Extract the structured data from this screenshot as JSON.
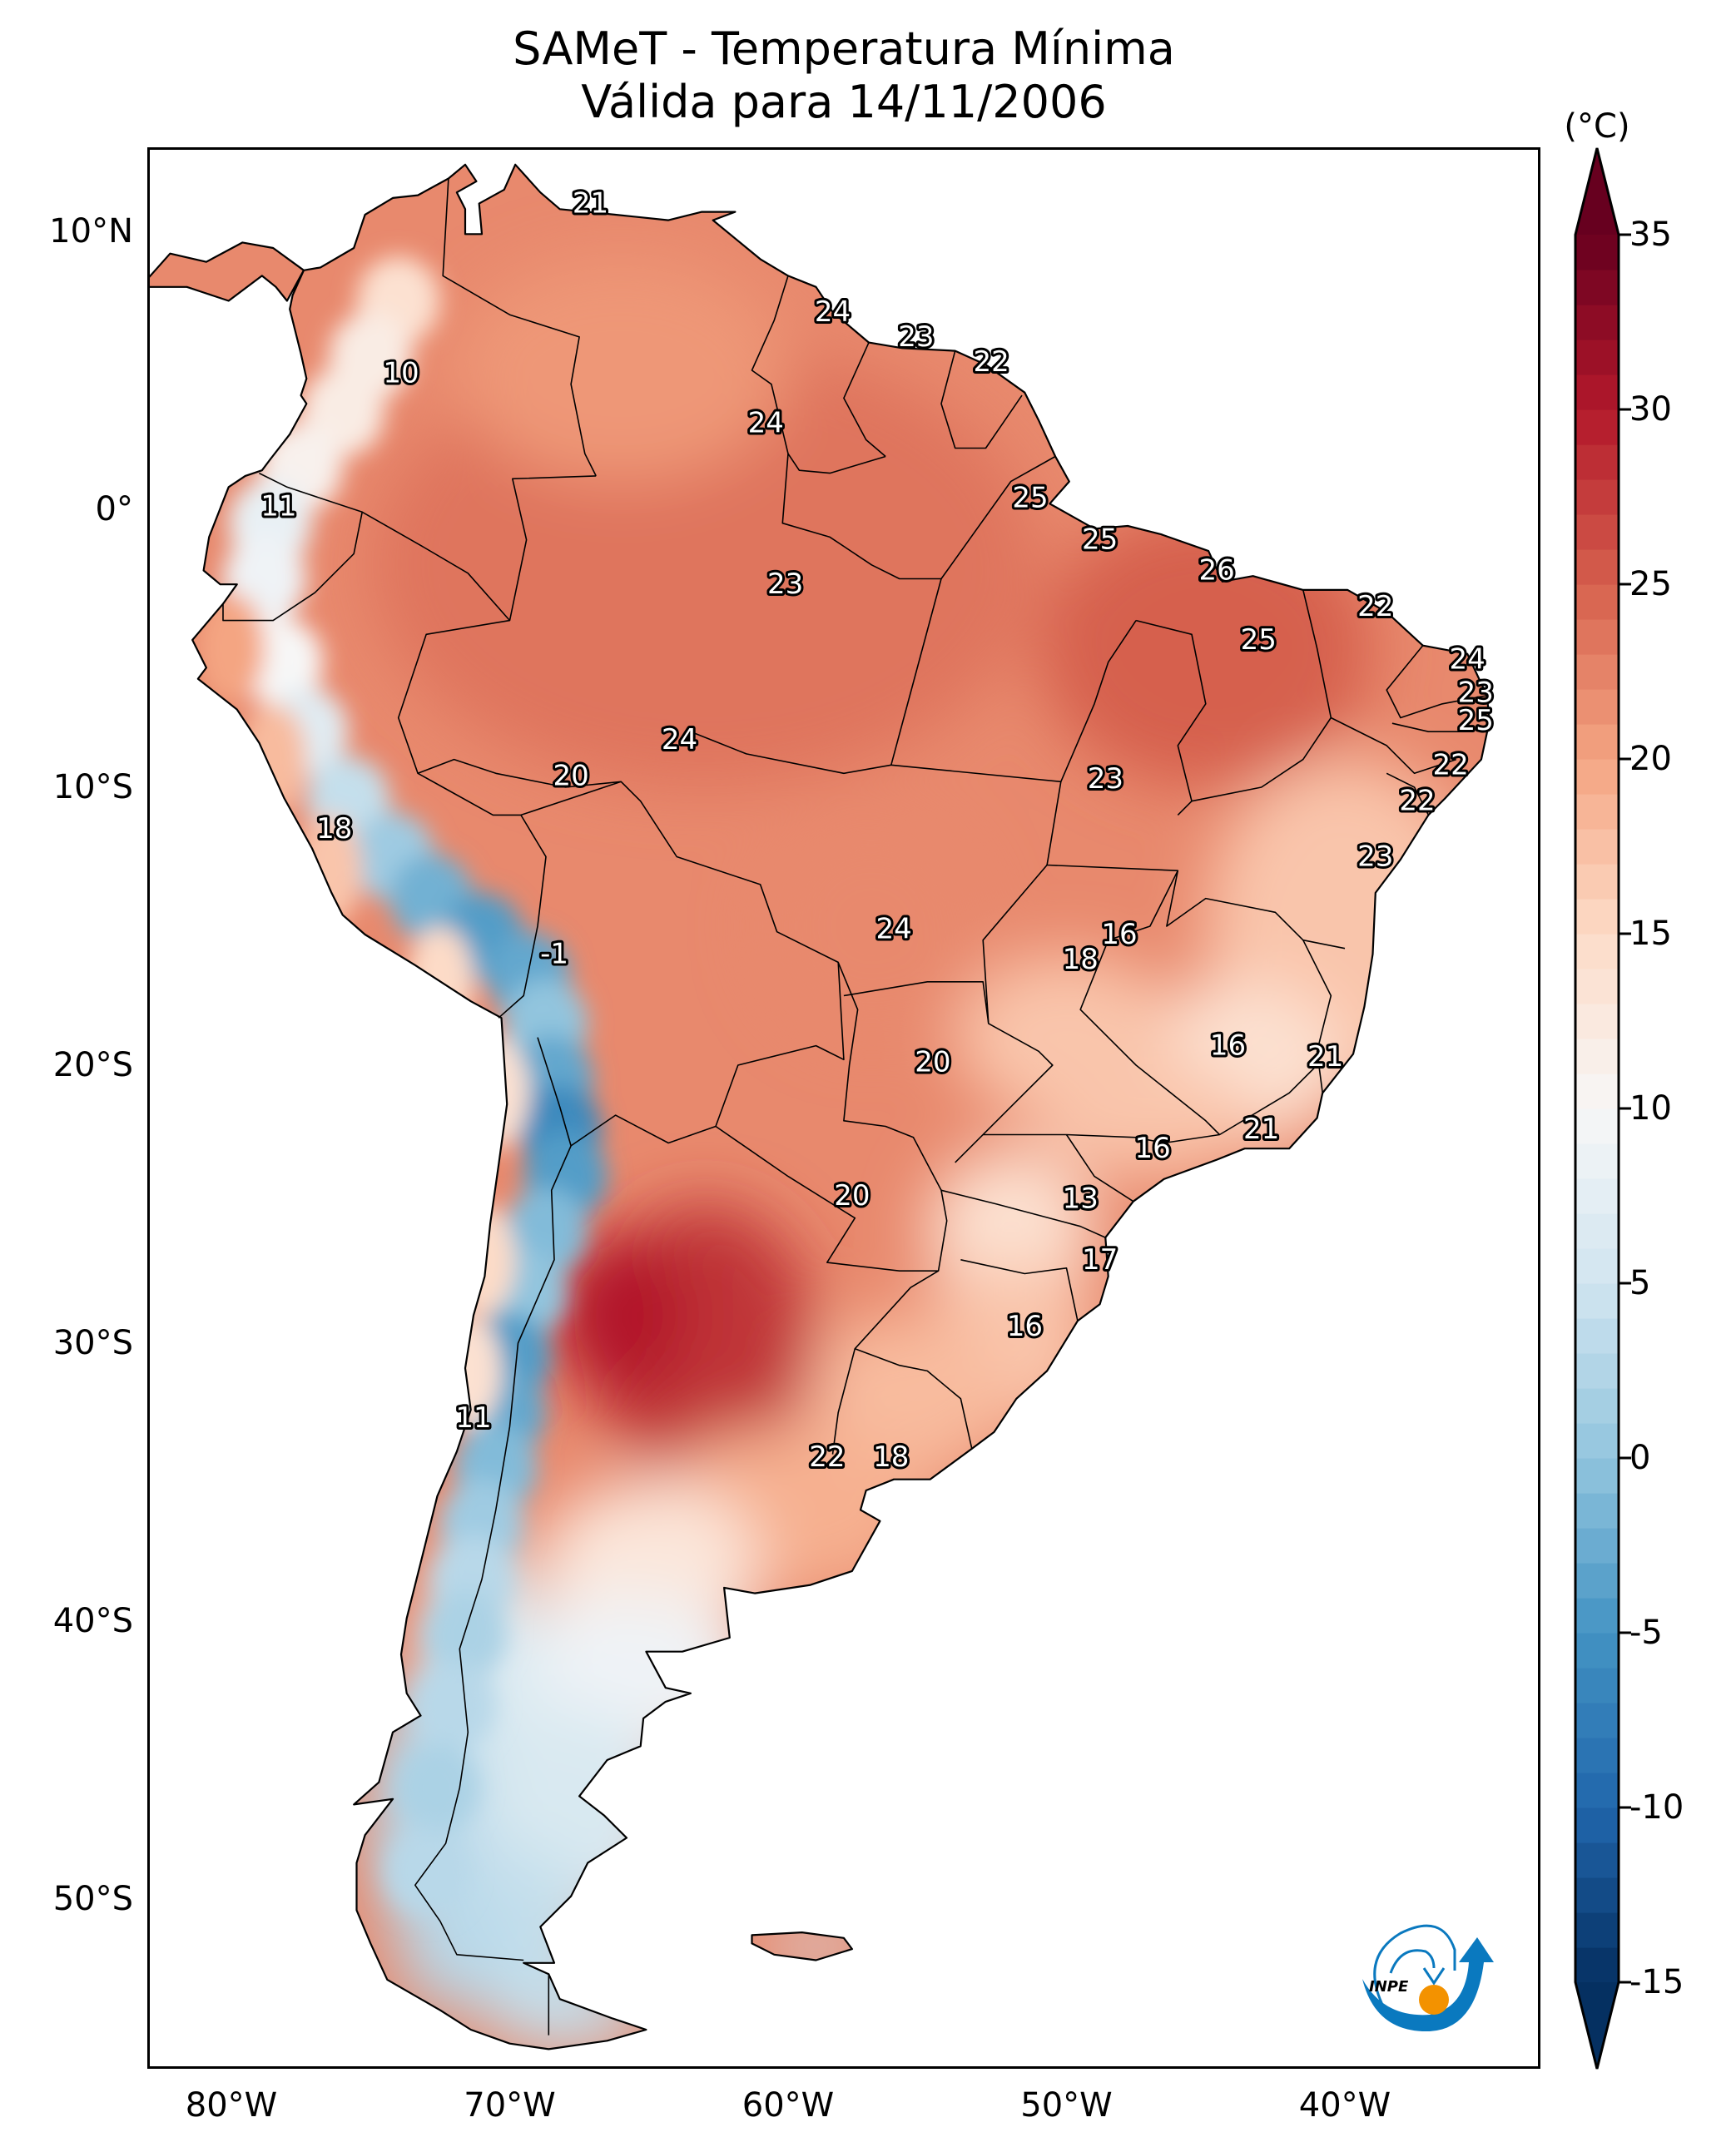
{
  "title": {
    "line1": "SAMeT - Temperatura Mínima",
    "line2": "Válida para 14/11/2006"
  },
  "logo": {
    "text": "INPE",
    "colors": {
      "blue": "#0a79bf",
      "orange": "#f39200"
    }
  },
  "chart_data": {
    "type": "heatmap",
    "subtype": "geographic filled-contour map with station labels",
    "title": "SAMeT - Temperatura Mínima",
    "subtitle": "Válida para 14/11/2006",
    "region": "South America",
    "variable": "Minimum temperature",
    "units": "(°C)",
    "extent": {
      "lon": [
        -83,
        -33
      ],
      "lat": [
        -56,
        13
      ]
    },
    "xticks": [
      -80,
      -70,
      -60,
      -50,
      -40
    ],
    "xtick_labels": [
      "80°W",
      "70°W",
      "60°W",
      "50°W",
      "40°W"
    ],
    "yticks": [
      10,
      0,
      -10,
      -20,
      -30,
      -40,
      -50
    ],
    "ytick_labels": [
      "10°N",
      "0°",
      "10°S",
      "20°S",
      "30°S",
      "40°S",
      "50°S"
    ],
    "colorbar": {
      "label": "(°C)",
      "range": [
        -15,
        35
      ],
      "ticks": [
        35,
        30,
        25,
        20,
        15,
        10,
        5,
        0,
        -5,
        -10,
        -15
      ],
      "tick_labels": [
        "35",
        "30",
        "25",
        "20",
        "15",
        "10",
        "5",
        "0",
        "-5",
        "-10",
        "-15"
      ],
      "extend": "both",
      "colormap": "RdBu_r",
      "stops": [
        {
          "v": -15,
          "c": "#053061"
        },
        {
          "v": -10,
          "c": "#2166ac"
        },
        {
          "v": -5,
          "c": "#4393c3"
        },
        {
          "v": 0,
          "c": "#92c5de"
        },
        {
          "v": 5,
          "c": "#d1e5f0"
        },
        {
          "v": 10,
          "c": "#f7f7f7"
        },
        {
          "v": 15,
          "c": "#fddbc7"
        },
        {
          "v": 20,
          "c": "#f4a582"
        },
        {
          "v": 25,
          "c": "#d6604d"
        },
        {
          "v": 30,
          "c": "#b2182b"
        },
        {
          "v": 35,
          "c": "#67001f"
        }
      ]
    },
    "point_labels": [
      {
        "lon": -67.1,
        "lat": 11.0,
        "value": "21"
      },
      {
        "lon": -58.4,
        "lat": 7.1,
        "value": "24"
      },
      {
        "lon": -55.4,
        "lat": 6.2,
        "value": "23"
      },
      {
        "lon": -52.7,
        "lat": 5.3,
        "value": "22"
      },
      {
        "lon": -73.9,
        "lat": 4.9,
        "value": "10"
      },
      {
        "lon": -60.8,
        "lat": 3.1,
        "value": "24"
      },
      {
        "lon": -78.3,
        "lat": 0.1,
        "value": "11"
      },
      {
        "lon": -51.3,
        "lat": 0.4,
        "value": "25"
      },
      {
        "lon": -48.8,
        "lat": -1.1,
        "value": "25"
      },
      {
        "lon": -60.1,
        "lat": -2.7,
        "value": "23"
      },
      {
        "lon": -44.6,
        "lat": -2.2,
        "value": "26"
      },
      {
        "lon": -38.9,
        "lat": -3.5,
        "value": "22"
      },
      {
        "lon": -43.1,
        "lat": -4.7,
        "value": "25"
      },
      {
        "lon": -35.6,
        "lat": -5.4,
        "value": "24"
      },
      {
        "lon": -35.3,
        "lat": -6.6,
        "value": "23"
      },
      {
        "lon": -35.3,
        "lat": -7.6,
        "value": "25"
      },
      {
        "lon": -63.9,
        "lat": -8.3,
        "value": "24"
      },
      {
        "lon": -67.8,
        "lat": -9.6,
        "value": "20"
      },
      {
        "lon": -48.6,
        "lat": -9.7,
        "value": "23"
      },
      {
        "lon": -36.2,
        "lat": -9.2,
        "value": "22"
      },
      {
        "lon": -37.4,
        "lat": -10.5,
        "value": "22"
      },
      {
        "lon": -76.3,
        "lat": -11.5,
        "value": "18"
      },
      {
        "lon": -38.9,
        "lat": -12.5,
        "value": "23"
      },
      {
        "lon": -56.2,
        "lat": -15.1,
        "value": "24"
      },
      {
        "lon": -48.1,
        "lat": -15.3,
        "value": "16"
      },
      {
        "lon": -49.5,
        "lat": -16.2,
        "value": "18"
      },
      {
        "lon": -68.4,
        "lat": -16.0,
        "value": "-1"
      },
      {
        "lon": -44.2,
        "lat": -19.3,
        "value": "16"
      },
      {
        "lon": -40.7,
        "lat": -19.7,
        "value": "21"
      },
      {
        "lon": -54.8,
        "lat": -19.9,
        "value": "20"
      },
      {
        "lon": -43.0,
        "lat": -22.3,
        "value": "21"
      },
      {
        "lon": -46.9,
        "lat": -23.0,
        "value": "16"
      },
      {
        "lon": -57.7,
        "lat": -24.7,
        "value": "20"
      },
      {
        "lon": -49.5,
        "lat": -24.8,
        "value": "13"
      },
      {
        "lon": -48.8,
        "lat": -27.0,
        "value": "17"
      },
      {
        "lon": -51.5,
        "lat": -29.4,
        "value": "16"
      },
      {
        "lon": -71.3,
        "lat": -32.7,
        "value": "11"
      },
      {
        "lon": -58.6,
        "lat": -34.1,
        "value": "22"
      },
      {
        "lon": -56.3,
        "lat": -34.1,
        "value": "18"
      }
    ],
    "field_features": [
      {
        "name": "Andes cold band",
        "approx_value": -5
      },
      {
        "name": "Amazon / Northeast warm",
        "approx_value": 24
      },
      {
        "name": "Chaco hot spot",
        "approx_value": 30
      },
      {
        "name": "Patagonia cool",
        "approx_value": 6
      }
    ]
  }
}
